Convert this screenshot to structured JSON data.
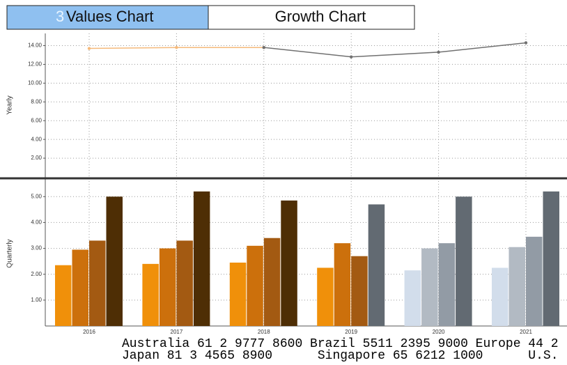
{
  "tabs": [
    {
      "hotkey": "3",
      "label": "Values Chart"
    },
    {
      "label": "Growth Chart"
    }
  ],
  "chart_data": [
    {
      "type": "line",
      "y_label": "Yearly",
      "categories": [
        "2016",
        "2017",
        "2018",
        "2019",
        "2020",
        "2021"
      ],
      "series": [
        {
          "color": "#f5b97a",
          "values": [
            13.7,
            13.8,
            13.8,
            null,
            null,
            null
          ]
        },
        {
          "color": "#707070",
          "values": [
            null,
            null,
            13.8,
            12.8,
            13.3,
            14.3
          ]
        }
      ],
      "ylim": [
        0,
        15.3
      ],
      "yticks": [
        {
          "value": 2,
          "label": "2.00"
        },
        {
          "value": 4,
          "label": "4.00"
        },
        {
          "value": 6,
          "label": "6.00"
        },
        {
          "value": 8,
          "label": "8.00"
        },
        {
          "value": 10,
          "label": "10.00"
        },
        {
          "value": 12,
          "label": "12.00"
        },
        {
          "value": 14,
          "label": "14.00"
        }
      ],
      "grid": true
    },
    {
      "type": "bar",
      "y_label": "Quarterly",
      "categories": [
        "2016",
        "2017",
        "2018",
        "2019",
        "2020",
        "2021"
      ],
      "series": [
        {
          "values": [
            2.35,
            2.4,
            2.45,
            2.25,
            2.15,
            2.25
          ],
          "colors": [
            "#f0900a",
            "#f0900a",
            "#f0900a",
            "#f0900a",
            "#d2ddeb",
            "#d2ddeb"
          ]
        },
        {
          "values": [
            2.95,
            3.0,
            3.1,
            3.2,
            3.0,
            3.05
          ],
          "colors": [
            "#cc700c",
            "#cc700c",
            "#cc700c",
            "#cc700c",
            "#b2bac3",
            "#b2bac3"
          ]
        },
        {
          "values": [
            3.3,
            3.3,
            3.4,
            2.7,
            3.2,
            3.45
          ],
          "colors": [
            "#a35a12",
            "#a35a12",
            "#a35a12",
            "#a35a12",
            "#929ba5",
            "#929ba5"
          ]
        },
        {
          "values": [
            5.0,
            5.2,
            4.85,
            4.7,
            5.0,
            5.2
          ],
          "colors": [
            "#4e2e05",
            "#4e2e05",
            "#4e2e05",
            "#626a72",
            "#626a72",
            "#626a72"
          ]
        }
      ],
      "ylim": [
        0,
        5.6
      ],
      "yticks": [
        {
          "value": 1,
          "label": "1.00"
        },
        {
          "value": 2,
          "label": "2.00"
        },
        {
          "value": 3,
          "label": "3.00"
        },
        {
          "value": 4,
          "label": "4.00"
        },
        {
          "value": 5,
          "label": "5.00"
        }
      ],
      "grid": true
    }
  ],
  "footer": {
    "lines": [
      "Australia 61 2 9777 8600 Brazil 5511 2395 9000 Europe 44 2",
      "Japan 81 3 4565 8900      Singapore 65 6212 1000      U.S."
    ]
  }
}
